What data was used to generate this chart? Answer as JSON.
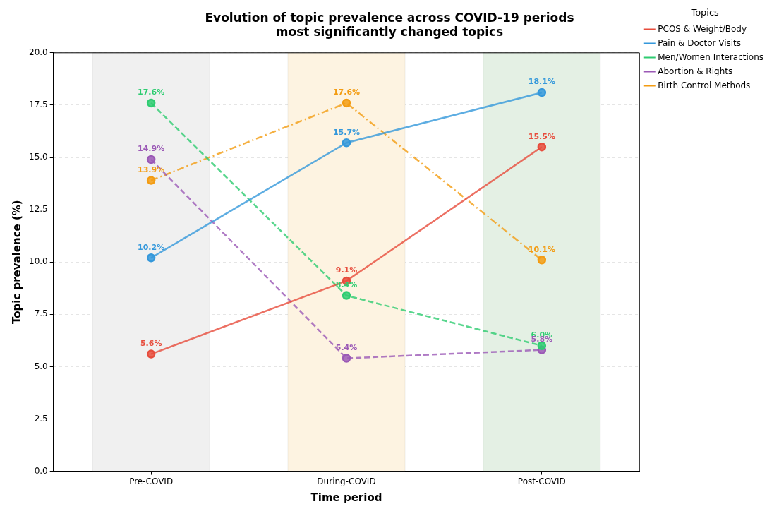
{
  "chart_data": {
    "type": "line",
    "title": "Evolution of topic prevalence across COVID-19 periods\nmost significantly changed topics",
    "xlabel": "Time period",
    "ylabel": "Topic prevalence (%)",
    "legend_title": "Topics",
    "categories": [
      "Pre-COVID",
      "During-COVID",
      "Post-COVID"
    ],
    "series": [
      {
        "name": "PCOS & Weight/Body",
        "color": "#e74c3c",
        "values": [
          5.6,
          9.1,
          15.5
        ],
        "value_labels": [
          "5.6%",
          "9.1%",
          "15.5%"
        ],
        "line_style": "solid"
      },
      {
        "name": "Pain & Doctor Visits",
        "color": "#3498db",
        "values": [
          10.2,
          15.7,
          18.1
        ],
        "value_labels": [
          "10.2%",
          "15.7%",
          "18.1%"
        ],
        "line_style": "solid"
      },
      {
        "name": "Men/Women Interactions",
        "color": "#2ecc71",
        "values": [
          17.6,
          8.4,
          6.0
        ],
        "value_labels": [
          "17.6%",
          "8.4%",
          "6.0%"
        ],
        "line_style": "dashed"
      },
      {
        "name": "Abortion & Rights",
        "color": "#9b59b6",
        "values": [
          14.9,
          5.4,
          5.8
        ],
        "value_labels": [
          "14.9%",
          "5.4%",
          "5.8%"
        ],
        "line_style": "dashed"
      },
      {
        "name": "Birth Control Methods",
        "color": "#f39c12",
        "values": [
          13.9,
          17.6,
          10.1
        ],
        "value_labels": [
          "13.9%",
          "17.6%",
          "10.1%"
        ],
        "line_style": "dashdot"
      }
    ],
    "bands": [
      {
        "axis": "x",
        "from": "Pre-COVID",
        "to": "Pre-COVID",
        "color": "#f0f0f0"
      },
      {
        "axis": "x",
        "from": "During-COVID",
        "to": "During-COVID",
        "color": "#fdf3e1"
      },
      {
        "axis": "x",
        "from": "Post-COVID",
        "to": "Post-COVID",
        "color": "#e4f0e4"
      }
    ],
    "ylim": [
      0,
      20
    ],
    "yticks": [
      {
        "value": 0,
        "label": "0.0"
      },
      {
        "value": 2.5,
        "label": "2.5"
      },
      {
        "value": 5,
        "label": "5.0"
      },
      {
        "value": 7.5,
        "label": "7.5"
      },
      {
        "value": 10,
        "label": "10.0"
      },
      {
        "value": 12.5,
        "label": "12.5"
      },
      {
        "value": 15,
        "label": "15.0"
      },
      {
        "value": 17.5,
        "label": "17.5"
      },
      {
        "value": 20,
        "label": "20.0"
      }
    ],
    "grid": true,
    "legend": "top right",
    "marker": "circle"
  }
}
